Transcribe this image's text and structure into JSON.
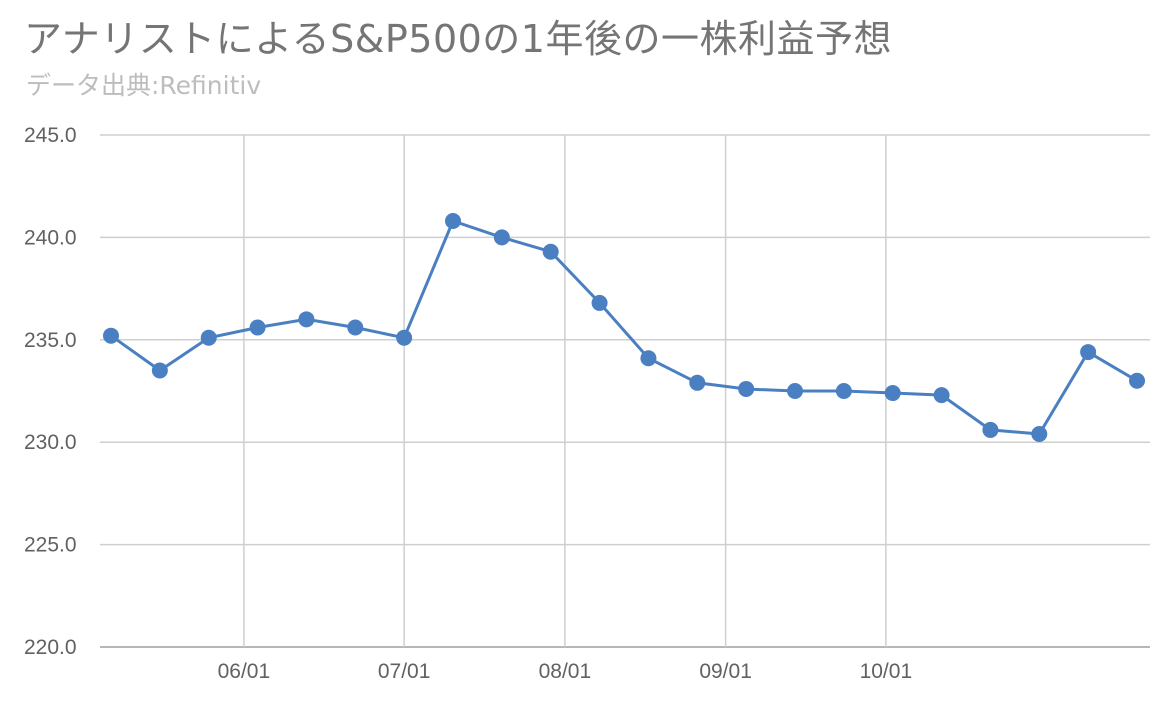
{
  "title": "アナリストによるS&P500の1年後の一株利益予想",
  "subtitle": "データ出典:Refinitiv",
  "chart_data": {
    "type": "line",
    "ylim": [
      220,
      245
    ],
    "y_ticks": [
      "245.0",
      "240.0",
      "235.0",
      "230.0",
      "225.0",
      "220.0"
    ],
    "y_tick_values": [
      245,
      240,
      235,
      230,
      225,
      220
    ],
    "x_ticks": [
      "06/01",
      "07/01",
      "08/01",
      "09/01",
      "10/01"
    ],
    "x_tick_index": [
      2.72,
      6.0,
      9.29,
      12.58,
      15.86
    ],
    "grid": true,
    "legend": "none",
    "color": "#4a7fc1",
    "series": [
      {
        "values": [
          235.2,
          233.5,
          235.1,
          235.6,
          236.0,
          235.6,
          235.1,
          240.8,
          240.0,
          239.3,
          236.8,
          234.1,
          232.9,
          232.6,
          232.5,
          232.5,
          232.4,
          232.3,
          230.6,
          230.4,
          234.4,
          233.0
        ]
      }
    ]
  }
}
